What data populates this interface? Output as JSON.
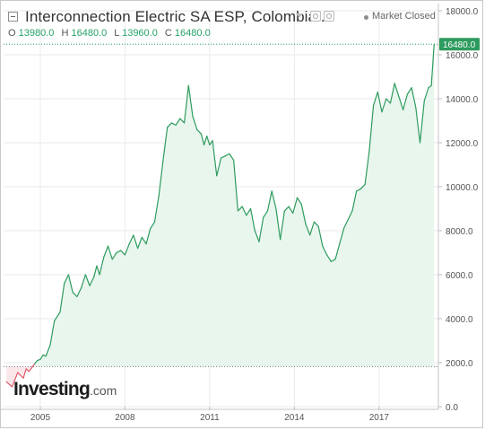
{
  "header": {
    "title": "Interconnection Electric SA ESP, Colombia...",
    "market_status": "Market Closed",
    "ohlc": [
      {
        "label": "O",
        "value": "13980.0"
      },
      {
        "label": "H",
        "value": "16480.0"
      },
      {
        "label": "L",
        "value": "13960.0"
      },
      {
        "label": "C",
        "value": "16480.0"
      }
    ]
  },
  "logo": {
    "name": "Investing",
    "suffix": ".com"
  },
  "colors": {
    "line": "#2e9b5e",
    "fill": "#e9f6ee",
    "below_line": "#e05a6a",
    "below_fill": "#fbe7ea",
    "last_price_badge": "#2e9b5e",
    "grid": "#eaeaea"
  },
  "chart_data": {
    "type": "area",
    "title": "Interconnection Electric SA ESP, Colombia...",
    "xlabel": "",
    "ylabel": "",
    "x_ticks": [
      "2005",
      "2008",
      "2011",
      "2014",
      "2017"
    ],
    "y_ticks": [
      "0.0",
      "2000.0",
      "4000.0",
      "6000.0",
      "8000.0",
      "10000.0",
      "12000.0",
      "14000.0",
      "16000.0",
      "18000.0"
    ],
    "ylim": [
      0,
      18000
    ],
    "xlim": [
      2003.7,
      2019.1
    ],
    "grid": true,
    "baseline": 1820,
    "last_price": 16480.0,
    "last_price_label": "16480.0",
    "series": [
      {
        "x": [
          2003.8,
          2004.0,
          2004.2,
          2004.4,
          2004.5,
          2004.6,
          2004.8,
          2004.9,
          2005.0,
          2005.1,
          2005.2,
          2005.35,
          2005.5,
          2005.7,
          2005.85,
          2006.0,
          2006.15,
          2006.3,
          2006.45,
          2006.6,
          2006.75,
          2006.9,
          2007.0,
          2007.1,
          2007.25,
          2007.4,
          2007.55,
          2007.7,
          2007.85,
          2008.0,
          2008.15,
          2008.3,
          2008.45,
          2008.6,
          2008.75,
          2008.9,
          2009.05,
          2009.2,
          2009.35,
          2009.5,
          2009.65,
          2009.8,
          2009.95,
          2010.1,
          2010.25,
          2010.4,
          2010.55,
          2010.7,
          2010.8,
          2010.9,
          2011.0,
          2011.1,
          2011.25,
          2011.4,
          2011.55,
          2011.7,
          2011.85,
          2012.0,
          2012.15,
          2012.3,
          2012.45,
          2012.6,
          2012.75,
          2012.9,
          2013.05,
          2013.2,
          2013.35,
          2013.5,
          2013.65,
          2013.8,
          2013.95,
          2014.1,
          2014.25,
          2014.4,
          2014.55,
          2014.7,
          2014.85,
          2015.0,
          2015.15,
          2015.3,
          2015.45,
          2015.6,
          2015.75,
          2015.9,
          2016.05,
          2016.2,
          2016.35,
          2016.5,
          2016.65,
          2016.8,
          2016.95,
          2017.1,
          2017.25,
          2017.4,
          2017.55,
          2017.7,
          2017.85,
          2018.0,
          2018.15,
          2018.3,
          2018.45,
          2018.6,
          2018.75,
          2018.85,
          2018.95
        ],
        "values": [
          1130,
          900,
          1550,
          1300,
          1720,
          1600,
          1950,
          2100,
          2150,
          2350,
          2300,
          2800,
          3900,
          4300,
          5600,
          6000,
          5200,
          5000,
          5400,
          6000,
          5500,
          5900,
          6400,
          6000,
          6800,
          7300,
          6700,
          7000,
          7100,
          6900,
          7400,
          7800,
          7200,
          7700,
          7400,
          8100,
          8400,
          9600,
          11200,
          12700,
          12900,
          12800,
          13100,
          12900,
          14600,
          13200,
          12600,
          12400,
          11900,
          12300,
          11900,
          12100,
          10500,
          11300,
          11400,
          11500,
          11200,
          8900,
          9100,
          8700,
          9000,
          8000,
          7500,
          8600,
          8900,
          9800,
          9000,
          7600,
          8900,
          9100,
          8800,
          9500,
          9200,
          8300,
          7800,
          8400,
          8200,
          7300,
          6900,
          6600,
          6700,
          7400,
          8100,
          8500,
          8900,
          9800,
          9900,
          10100,
          11600,
          13700,
          14300,
          13400,
          14000,
          13800,
          14700,
          14100,
          13500,
          14200,
          14500,
          13600,
          12000,
          13900,
          14500,
          14600,
          16480
        ]
      }
    ]
  }
}
